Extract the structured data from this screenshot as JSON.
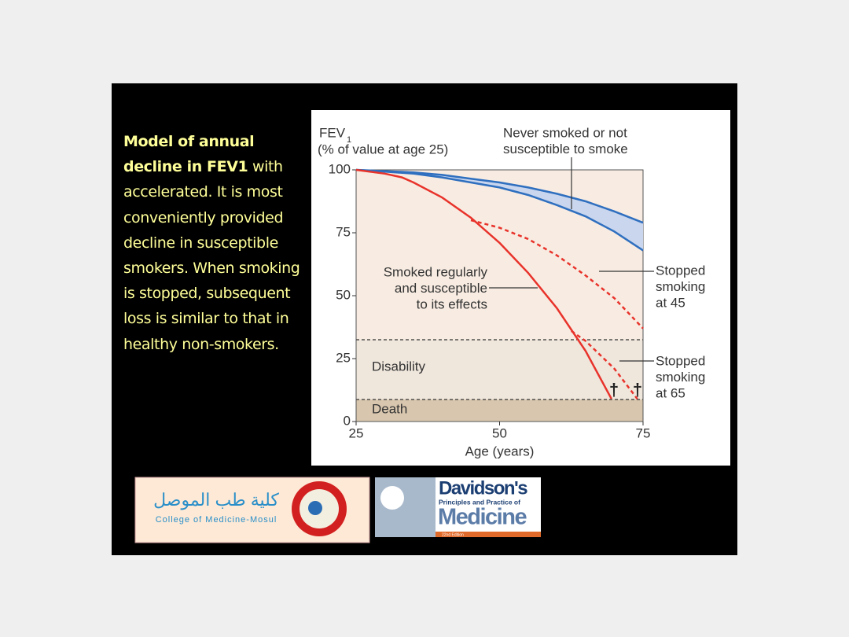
{
  "slide_text": {
    "bold": "Model of annual decline in FEV1",
    "rest": " with accelerated. It is most conveniently provided decline in susceptible smokers. When smoking is stopped, subsequent loss is similar to that in healthy non-smokers."
  },
  "chart_data": {
    "type": "line",
    "ylabel_main": "FEV",
    "ylabel_sub": "1",
    "ylabel_unit": "(% of value at age 25)",
    "xlabel": "Age (years)",
    "xlim": [
      25,
      75
    ],
    "xticks": [
      25,
      50,
      75
    ],
    "ylim": [
      0,
      100
    ],
    "yticks": [
      0,
      25,
      50,
      75,
      100
    ],
    "series": [
      {
        "label": [
          "Never smoked or not",
          "susceptible to smoke"
        ],
        "color": "#2f6fbf",
        "fill": "#c9d6ee",
        "x": [
          25,
          30,
          35,
          40,
          45,
          50,
          55,
          60,
          65,
          70,
          75
        ],
        "values": [
          100,
          99.3,
          98.5,
          97,
          95,
          93,
          90,
          86,
          81.5,
          75.5,
          68
        ],
        "high": [
          100,
          99.5,
          99,
          98,
          96.5,
          95,
          93,
          90.5,
          87.5,
          83.5,
          79
        ]
      },
      {
        "label": [
          "Smoked regularly",
          "and susceptible",
          "to its effects"
        ],
        "color": "#e8332b",
        "dashed": false,
        "x": [
          25,
          30,
          33,
          35,
          40,
          45,
          50,
          55,
          60,
          65,
          69.5
        ],
        "values": [
          100,
          98.5,
          97,
          95,
          89,
          81,
          71,
          59,
          45,
          28,
          9
        ]
      },
      {
        "label": [
          "Stopped",
          "smoking",
          "at 45"
        ],
        "color": "#e8332b",
        "dashed": true,
        "x": [
          45,
          50,
          55,
          60,
          65,
          70,
          75
        ],
        "values": [
          80,
          77,
          72.5,
          66,
          58,
          49,
          37
        ]
      },
      {
        "label": [
          "Stopped",
          "smoking",
          "at 65"
        ],
        "color": "#e8332b",
        "dashed": true,
        "x": [
          62.5,
          65,
          70,
          74
        ],
        "values": [
          36,
          32,
          21,
          9
        ]
      }
    ],
    "zones": [
      {
        "label": "Disability",
        "threshold": 32.5
      },
      {
        "label": "Death",
        "threshold": 8.75
      }
    ],
    "death_marker": "†"
  },
  "logos": {
    "arabic": "كلية طب الموصل",
    "college": "College of Medicine-Mosul",
    "book_title": "Davidson's",
    "book_sub": "Principles and Practice of",
    "book_main": "Medicine",
    "book_edition": "22nd Edition"
  }
}
